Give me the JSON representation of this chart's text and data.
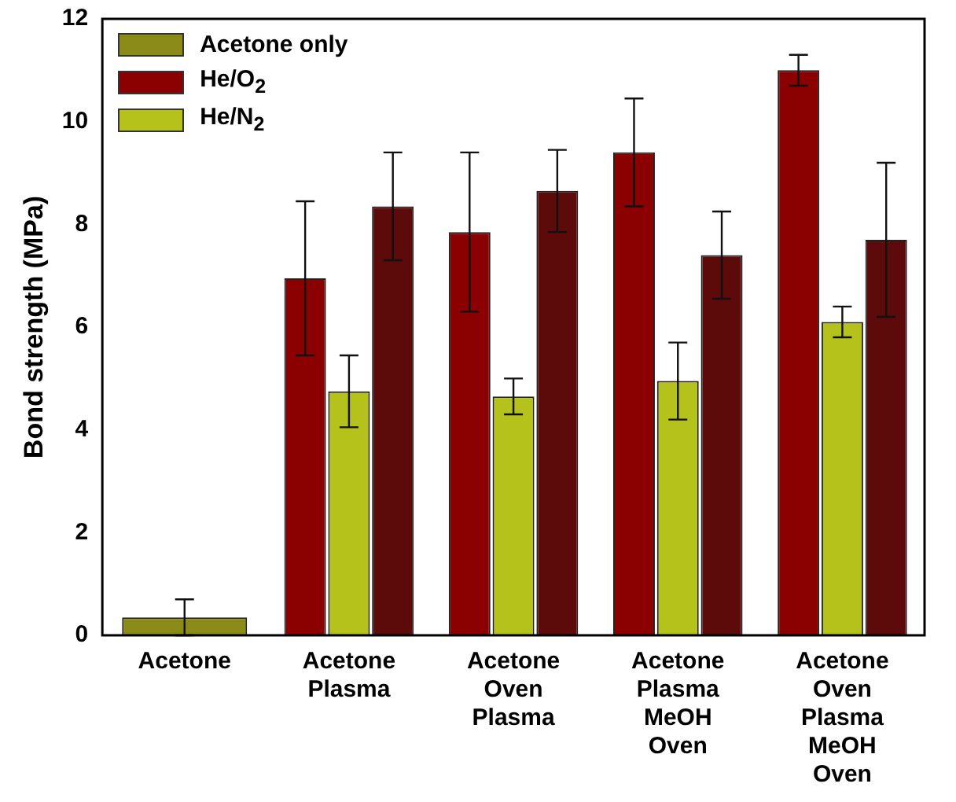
{
  "chart_data": {
    "type": "bar",
    "ylabel": "Bond strength (MPa)",
    "categories": [
      "Acetone",
      "Acetone\nPlasma",
      "Acetone\nOven\nPlasma",
      "Acetone\nPlasma\nMeOH\nOven",
      "Acetone\nOven\nPlasma\nMeOH\nOven"
    ],
    "series": [
      {
        "name": "Acetone only",
        "color": "#8b8b1a",
        "values": [
          0.35,
          null,
          null,
          null,
          null
        ],
        "errors": [
          0.35,
          null,
          null,
          null,
          null
        ]
      },
      {
        "name": "He/O$_{2}$",
        "color": "#8b0000",
        "values": [
          null,
          6.95,
          7.85,
          9.4,
          11.0
        ],
        "errors": [
          null,
          1.5,
          1.55,
          1.05,
          0.3
        ]
      },
      {
        "name": "He/N$_{2}$",
        "color": "#b5c21b",
        "values": [
          null,
          4.75,
          4.65,
          4.95,
          6.1
        ],
        "errors": [
          null,
          0.7,
          0.35,
          0.75,
          0.3
        ]
      },
      {
        "color": "#5c0a0a",
        "values": [
          null,
          8.35,
          8.65,
          7.4,
          7.7
        ],
        "errors": [
          null,
          1.05,
          0.8,
          0.85,
          1.5
        ]
      }
    ],
    "ylim": [
      0,
      12
    ],
    "yticks": [
      0,
      2,
      4,
      6,
      8,
      10,
      12
    ],
    "grid": false,
    "legend": "top left"
  }
}
